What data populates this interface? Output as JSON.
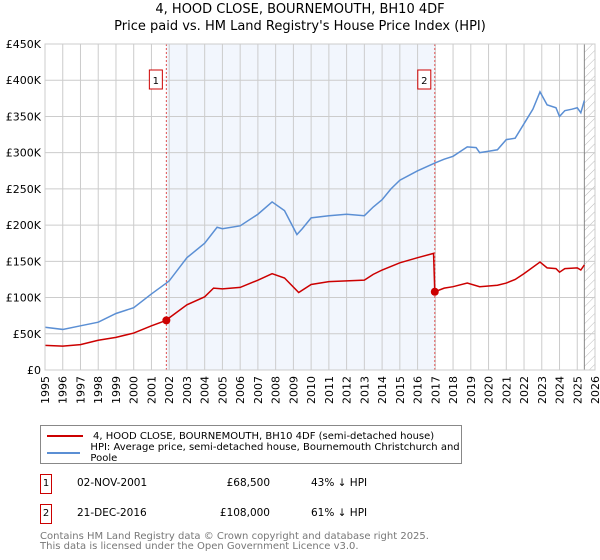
{
  "header": {
    "title": "4, HOOD CLOSE, BOURNEMOUTH, BH10 4DF",
    "subtitle": "Price paid vs. HM Land Registry's House Price Index (HPI)"
  },
  "chart_data": {
    "type": "line",
    "title": "4, HOOD CLOSE, BOURNEMOUTH, BH10 4DF",
    "subtitle": "Price paid vs. HM Land Registry's House Price Index (HPI)",
    "xlim": [
      1995,
      2026
    ],
    "ylim": [
      0,
      450000
    ],
    "x_ticks": [
      "1995",
      "1996",
      "1997",
      "1998",
      "1999",
      "2000",
      "2001",
      "2002",
      "2003",
      "2004",
      "2005",
      "2006",
      "2007",
      "2008",
      "2009",
      "2010",
      "2011",
      "2012",
      "2013",
      "2014",
      "2015",
      "2016",
      "2017",
      "2018",
      "2019",
      "2020",
      "2021",
      "2022",
      "2023",
      "2024",
      "2025",
      "2026"
    ],
    "y_ticks": [
      {
        "v": 0,
        "label": "£0"
      },
      {
        "v": 50000,
        "label": "£50K"
      },
      {
        "v": 100000,
        "label": "£100K"
      },
      {
        "v": 150000,
        "label": "£150K"
      },
      {
        "v": 200000,
        "label": "£200K"
      },
      {
        "v": 250000,
        "label": "£250K"
      },
      {
        "v": 300000,
        "label": "£300K"
      },
      {
        "v": 350000,
        "label": "£350K"
      },
      {
        "v": 400000,
        "label": "£400K"
      },
      {
        "v": 450000,
        "label": "£450K"
      }
    ],
    "grid": true,
    "shaded_range": [
      2001.84,
      2016.97
    ],
    "forecast_hatch_from": 2025.4,
    "series": [
      {
        "name": "4, HOOD CLOSE, BOURNEMOUTH, BH10 4DF (semi-detached house)",
        "color": "#cc0000",
        "x": [
          1995,
          1996,
          1997,
          1998,
          1999,
          2000,
          2001,
          2001.84,
          2002,
          2003,
          2004,
          2004.5,
          2005,
          2006,
          2007,
          2007.8,
          2008.5,
          2009.3,
          2010,
          2011,
          2012,
          2013,
          2013.5,
          2014,
          2015,
          2016,
          2016.9,
          2016.97,
          2017.5,
          2018,
          2018.8,
          2019.5,
          2020.5,
          2021,
          2021.5,
          2022,
          2022.9,
          2023.3,
          2023.8,
          2024,
          2024.3,
          2025,
          2025.2,
          2025.4
        ],
        "y": [
          34000,
          33000,
          35000,
          41000,
          45000,
          51000,
          61000,
          68500,
          72000,
          90000,
          101000,
          113000,
          112000,
          114000,
          124000,
          133000,
          127000,
          107000,
          118000,
          122000,
          123000,
          124000,
          132000,
          138000,
          148000,
          155000,
          161000,
          108000,
          113000,
          115000,
          120000,
          115000,
          117000,
          120000,
          125000,
          133000,
          149000,
          141000,
          140000,
          135000,
          140000,
          141000,
          138000,
          145000
        ]
      },
      {
        "name": "HPI: Average price, semi-detached house, Bournemouth Christchurch and Poole",
        "color": "#5b8fd4",
        "x": [
          1995,
          1996,
          1997,
          1998,
          1999,
          2000,
          2001,
          2001.84,
          2002,
          2003,
          2004,
          2004.7,
          2005,
          2006,
          2007,
          2007.8,
          2008.5,
          2009.2,
          2009.5,
          2010,
          2011,
          2012,
          2013,
          2013.5,
          2014,
          2014.5,
          2015,
          2016,
          2017,
          2017.5,
          2018,
          2018.8,
          2019.3,
          2019.5,
          2020,
          2020.5,
          2021,
          2021.5,
          2022,
          2022.5,
          2022.9,
          2023.3,
          2023.8,
          2024,
          2024.3,
          2024.7,
          2025,
          2025.2,
          2025.4
        ],
        "y": [
          59000,
          56000,
          61000,
          66000,
          78000,
          86000,
          105000,
          120000,
          123000,
          155000,
          175000,
          197000,
          195000,
          199000,
          215000,
          232000,
          220000,
          187000,
          195000,
          210000,
          213000,
          215000,
          213000,
          225000,
          235000,
          250000,
          262000,
          275000,
          286000,
          291000,
          295000,
          308000,
          307000,
          300000,
          302000,
          304000,
          318000,
          320000,
          340000,
          360000,
          384000,
          366000,
          362000,
          350000,
          358000,
          360000,
          362000,
          355000,
          372000
        ]
      }
    ],
    "markers": [
      {
        "label": "1",
        "x": 2001.84,
        "y": 68500
      },
      {
        "label": "2",
        "x": 2016.97,
        "y": 108000
      }
    ]
  },
  "legend": {
    "items": [
      {
        "label": "4, HOOD CLOSE, BOURNEMOUTH, BH10 4DF (semi-detached house)",
        "color": "#cc0000"
      },
      {
        "label": "HPI: Average price, semi-detached house, Bournemouth Christchurch and Poole",
        "color": "#5b8fd4"
      }
    ]
  },
  "transactions": [
    {
      "num": "1",
      "date": "02-NOV-2001",
      "price": "£68,500",
      "hpi": "43% ↓ HPI"
    },
    {
      "num": "2",
      "date": "21-DEC-2016",
      "price": "£108,000",
      "hpi": "61% ↓ HPI"
    }
  ],
  "footer": {
    "line1": "Contains HM Land Registry data © Crown copyright and database right 2025.",
    "line2": "This data is licensed under the Open Government Licence v3.0."
  }
}
